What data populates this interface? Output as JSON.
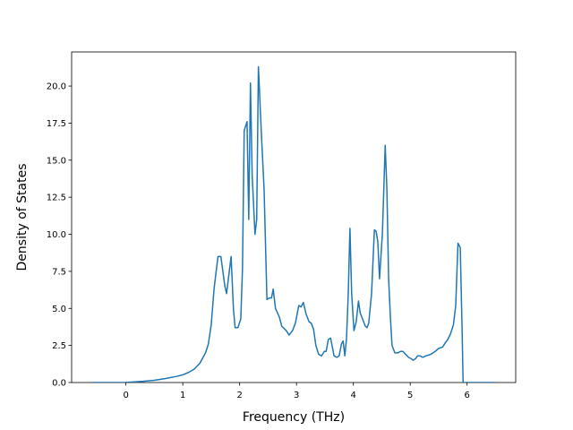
{
  "chart_data": {
    "type": "line",
    "xlabel": "Frequency (THz)",
    "ylabel": "Density of States",
    "color": "#1f77b4",
    "x": [
      -0.6,
      -0.2,
      0,
      0.3,
      0.5,
      0.7,
      0.9,
      1.0,
      1.1,
      1.2,
      1.3,
      1.4,
      1.45,
      1.5,
      1.55,
      1.58,
      1.62,
      1.67,
      1.74,
      1.77,
      1.85,
      1.89,
      1.92,
      1.97,
      2.02,
      2.05,
      2.08,
      2.13,
      2.16,
      2.19,
      2.22,
      2.27,
      2.3,
      2.33,
      2.38,
      2.43,
      2.48,
      2.52,
      2.56,
      2.59,
      2.63,
      2.7,
      2.74,
      2.82,
      2.87,
      2.93,
      2.98,
      3.04,
      3.08,
      3.12,
      3.17,
      3.22,
      3.26,
      3.3,
      3.34,
      3.39,
      3.44,
      3.49,
      3.52,
      3.56,
      3.6,
      3.63,
      3.66,
      3.71,
      3.75,
      3.79,
      3.82,
      3.85,
      3.88,
      3.91,
      3.94,
      3.97,
      4.01,
      4.05,
      4.09,
      4.12,
      4.16,
      4.21,
      4.24,
      4.27,
      4.32,
      4.37,
      4.4,
      4.43,
      4.46,
      4.51,
      4.56,
      4.59,
      4.62,
      4.65,
      4.68,
      4.73,
      4.78,
      4.83,
      4.87,
      4.92,
      4.97,
      5.02,
      5.05,
      5.09,
      5.13,
      5.17,
      5.22,
      5.28,
      5.36,
      5.44,
      5.5,
      5.57,
      5.62,
      5.66,
      5.71,
      5.76,
      5.8,
      5.84,
      5.88,
      5.91,
      5.93,
      6.5
    ],
    "values": [
      0,
      0,
      0.01,
      0.08,
      0.15,
      0.27,
      0.42,
      0.52,
      0.68,
      0.9,
      1.3,
      2.0,
      2.6,
      3.9,
      6.3,
      7.3,
      8.5,
      8.5,
      6.5,
      6.0,
      8.5,
      5.0,
      3.7,
      3.7,
      4.3,
      7.7,
      17.0,
      17.6,
      11.0,
      20.2,
      14.0,
      10.0,
      11.0,
      21.3,
      17.0,
      13.0,
      5.6,
      5.7,
      5.7,
      6.3,
      5.0,
      4.4,
      3.8,
      3.5,
      3.2,
      3.5,
      4.0,
      5.2,
      5.1,
      5.4,
      4.6,
      4.1,
      4.0,
      3.6,
      2.5,
      1.9,
      1.8,
      2.1,
      2.1,
      2.9,
      3.0,
      2.4,
      1.8,
      1.7,
      1.8,
      2.6,
      2.8,
      1.8,
      3.0,
      6.0,
      10.4,
      6.0,
      3.5,
      4.1,
      5.5,
      4.7,
      4.3,
      3.8,
      3.7,
      4.0,
      6.0,
      10.3,
      10.2,
      9.5,
      7.0,
      10.0,
      16.0,
      13.0,
      7.0,
      4.5,
      2.5,
      2.0,
      2.0,
      2.1,
      2.1,
      1.9,
      1.7,
      1.6,
      1.5,
      1.6,
      1.8,
      1.8,
      1.7,
      1.8,
      1.9,
      2.1,
      2.3,
      2.4,
      2.7,
      2.9,
      3.3,
      3.9,
      5.2,
      9.4,
      9.1,
      4.0,
      0,
      0
    ],
    "xlim": [
      -0.955,
      6.855
    ],
    "ylim": [
      0,
      22.3
    ],
    "xticks": [
      0,
      1,
      2,
      3,
      4,
      5,
      6
    ],
    "yticks": [
      {
        "value": 0,
        "label": "0.0"
      },
      {
        "value": 2.5,
        "label": "2.5"
      },
      {
        "value": 5,
        "label": "5.0"
      },
      {
        "value": 7.5,
        "label": "7.5"
      },
      {
        "value": 10,
        "label": "10.0"
      },
      {
        "value": 12.5,
        "label": "12.5"
      },
      {
        "value": 15,
        "label": "15.0"
      },
      {
        "value": 17.5,
        "label": "17.5"
      },
      {
        "value": 20,
        "label": "20.0"
      }
    ]
  }
}
